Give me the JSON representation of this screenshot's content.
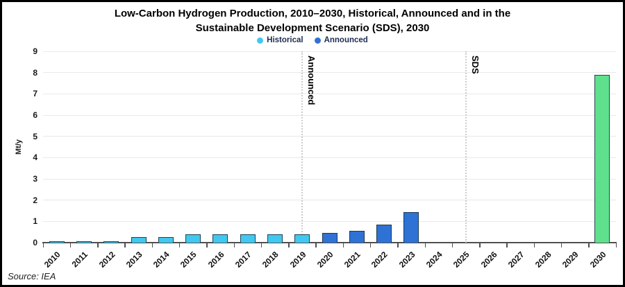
{
  "title": {
    "line1": "Low-Carbon Hydrogen Production, 2010–2030, Historical, Announced and in the",
    "line2": "Sustainable Development Scenario (SDS), 2030"
  },
  "legend": [
    {
      "label": "Historical",
      "color": "#41c8f0"
    },
    {
      "label": "Announced",
      "color": "#2f72d5"
    }
  ],
  "source": "Source: IEA",
  "colors": {
    "historical": "#41c8f0",
    "announced": "#2f72d5",
    "sds": "#5fe08d",
    "gridline": "#e9e9e9",
    "dotted_line": "#cccccc",
    "axis": "#4f4f4f"
  },
  "chart_data": {
    "type": "bar",
    "title": "Low-Carbon Hydrogen Production, 2010–2030, Historical, Announced and in the Sustainable Development Scenario (SDS), 2030",
    "xlabel": "",
    "ylabel": "Mt/y",
    "ylim": [
      0,
      9
    ],
    "yticks": [
      0,
      1,
      2,
      3,
      4,
      5,
      6,
      7,
      8,
      9
    ],
    "grid": "horizontal",
    "legend_position": "top",
    "categories": [
      "2010",
      "2011",
      "2012",
      "2013",
      "2014",
      "2015",
      "2016",
      "2017",
      "2018",
      "2019",
      "2020",
      "2021",
      "2022",
      "2023",
      "2024",
      "2025",
      "2026",
      "2027",
      "2028",
      "2029",
      "2030"
    ],
    "series": [
      {
        "name": "Historical",
        "color": "#41c8f0",
        "values": {
          "2010": 0.08,
          "2011": 0.08,
          "2012": 0.08,
          "2013": 0.25,
          "2014": 0.25,
          "2015": 0.4,
          "2016": 0.4,
          "2017": 0.4,
          "2018": 0.4,
          "2019": 0.4
        }
      },
      {
        "name": "Announced",
        "color": "#2f72d5",
        "values": {
          "2020": 0.45,
          "2021": 0.55,
          "2022": 0.85,
          "2023": 1.45
        }
      },
      {
        "name": "SDS 2030",
        "color": "#5fe08d",
        "values": {
          "2030": 7.9
        }
      }
    ],
    "annotations": [
      {
        "text": "Announced",
        "at_category": "2019"
      },
      {
        "text": "SDS",
        "at_category": "2025"
      }
    ]
  }
}
